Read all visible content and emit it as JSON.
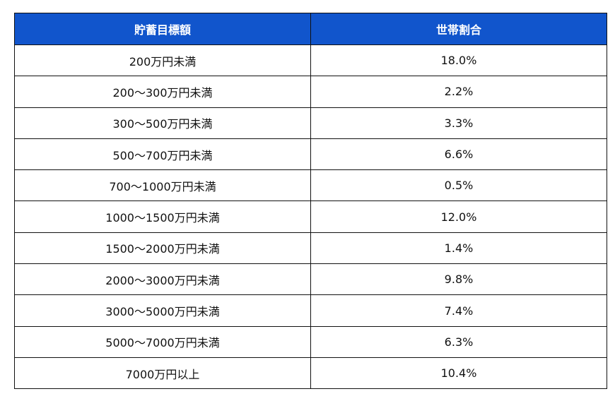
{
  "chart_data": {
    "type": "table",
    "header_color": "#1155cc",
    "columns": [
      "貯蓄目標額",
      "世帯割合"
    ],
    "rows": [
      [
        "200万円未満",
        "18.0%"
      ],
      [
        "200～300万円未満",
        "2.2%"
      ],
      [
        "300～500万円未満",
        "3.3%"
      ],
      [
        "500～700万円未満",
        "6.6%"
      ],
      [
        "700～1000万円未満",
        "0.5%"
      ],
      [
        "1000～1500万円未満",
        "12.0%"
      ],
      [
        "1500～2000万円未満",
        "1.4%"
      ],
      [
        "2000～3000万円未満",
        "9.8%"
      ],
      [
        "3000～5000万円未満",
        "7.4%"
      ],
      [
        "5000～7000万円未満",
        "6.3%"
      ],
      [
        "7000万円以上",
        "10.4%"
      ]
    ]
  }
}
